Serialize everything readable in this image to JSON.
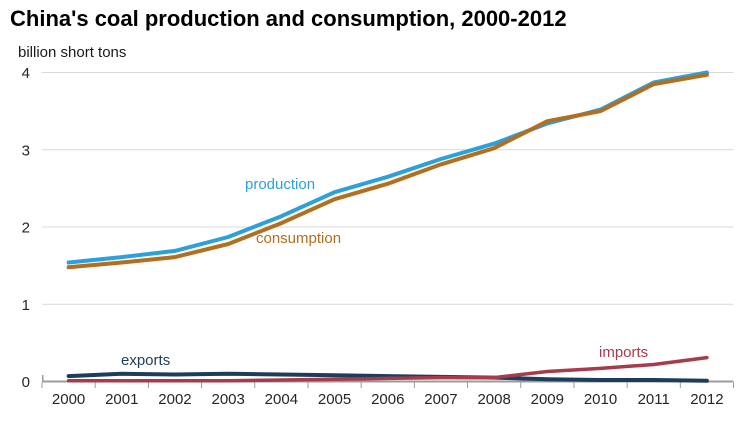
{
  "page": {
    "title": "China's coal production and consumption, 2000-2012",
    "units_label": "billion short tons"
  },
  "colors": {
    "production": "#2CA0DA",
    "consumption": "#B26F20",
    "exports": "#1C3E5A",
    "imports": "#A63B4C",
    "gridline": "#D9D9D9",
    "axis": "#9B9B9B",
    "tick_text": "#262626",
    "title_text": "#000000"
  },
  "chart_data": {
    "type": "line",
    "title": "China's coal production and consumption, 2000-2012",
    "xlabel": "",
    "ylabel": "billion short tons",
    "x": [
      2000,
      2001,
      2002,
      2003,
      2004,
      2005,
      2006,
      2007,
      2008,
      2009,
      2010,
      2011,
      2012
    ],
    "ylim": [
      0,
      4
    ],
    "yticks": [
      0,
      1,
      2,
      3,
      4
    ],
    "grid": "horizontal",
    "legend_position": "inline-labels",
    "series": [
      {
        "name": "production",
        "color": "#2CA0DA",
        "values": [
          1.54,
          1.61,
          1.69,
          1.87,
          2.14,
          2.45,
          2.65,
          2.88,
          3.08,
          3.34,
          3.52,
          3.87,
          4.0
        ]
      },
      {
        "name": "consumption",
        "color": "#B26F20",
        "values": [
          1.48,
          1.54,
          1.61,
          1.78,
          2.05,
          2.36,
          2.56,
          2.81,
          3.02,
          3.37,
          3.5,
          3.85,
          3.97
        ]
      },
      {
        "name": "exports",
        "color": "#1C3E5A",
        "values": [
          0.07,
          0.1,
          0.09,
          0.1,
          0.09,
          0.08,
          0.07,
          0.06,
          0.05,
          0.03,
          0.02,
          0.02,
          0.01
        ]
      },
      {
        "name": "imports",
        "color": "#A63B4C",
        "values": [
          0.01,
          0.01,
          0.01,
          0.01,
          0.02,
          0.03,
          0.04,
          0.05,
          0.05,
          0.13,
          0.17,
          0.22,
          0.31
        ]
      }
    ]
  }
}
